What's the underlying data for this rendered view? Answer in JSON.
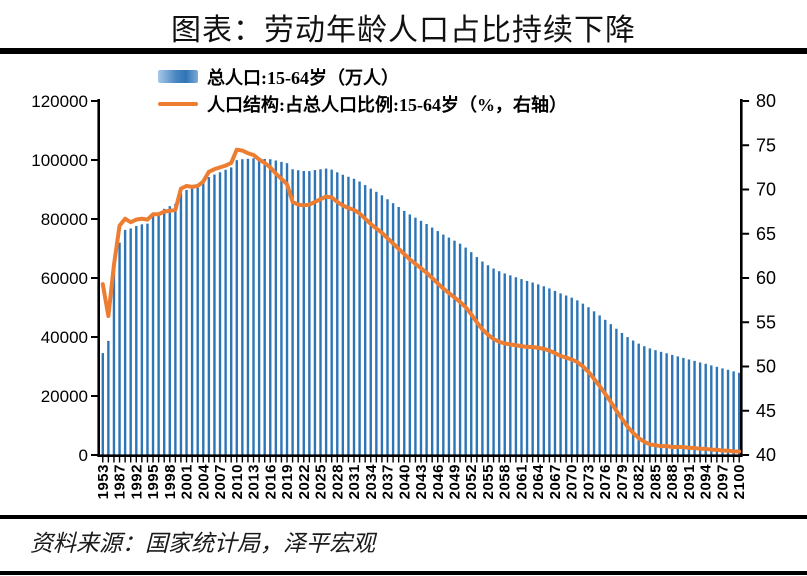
{
  "title": "图表：劳动年龄人口占比持续下降",
  "source": "资料来源：国家统计局，泽平宏观",
  "legend": {
    "bar_label": "总人口:15-64岁（万人）",
    "line_label": "人口结构:占总人口比例:15-64岁（%，右轴）"
  },
  "colors": {
    "bar": "#2e75b6",
    "line": "#ed7d31",
    "axis": "#000000"
  },
  "chart_data": {
    "type": "bar",
    "subtype": "combo-bar-line-dual-axis",
    "title": "劳动年龄人口占比持续下降",
    "xlabel": "",
    "ylabel_left": "总人口:15-64岁（万人）",
    "ylabel_right": "人口结构:占总人口比例:15-64岁（%，右轴）",
    "grid": false,
    "legend_position": "top-left",
    "left_axis": {
      "min": 0,
      "max": 120000,
      "step": 20000,
      "ticks": [
        "0",
        "20000",
        "40000",
        "60000",
        "80000",
        "100000",
        "120000"
      ]
    },
    "right_axis": {
      "min": 40,
      "max": 80,
      "step": 5,
      "ticks": [
        "40",
        "45",
        "50",
        "55",
        "60",
        "65",
        "70",
        "75",
        "80"
      ]
    },
    "x_label_every": 3,
    "x_tick_labels": [
      "1953",
      "1987",
      "1992",
      "1995",
      "1998",
      "2001",
      "2004",
      "2007",
      "2010",
      "2013",
      "2016",
      "2019",
      "2022",
      "2025",
      "2028",
      "2031",
      "2034",
      "2037",
      "2040",
      "2043",
      "2046",
      "2049",
      "2052",
      "2055",
      "2058",
      "2061",
      "2064",
      "2067",
      "2070",
      "2073",
      "2076",
      "2079",
      "2082",
      "2085",
      "2088",
      "2091",
      "2094",
      "2097",
      "2100"
    ],
    "categories": [
      "1953",
      "1964",
      "1982",
      "1987",
      "1990",
      "1991",
      "1992",
      "1993",
      "1994",
      "1995",
      "1996",
      "1997",
      "1998",
      "1999",
      "2000",
      "2001",
      "2002",
      "2003",
      "2004",
      "2005",
      "2006",
      "2007",
      "2008",
      "2009",
      "2010",
      "2011",
      "2012",
      "2013",
      "2014",
      "2015",
      "2016",
      "2017",
      "2018",
      "2019",
      "2020",
      "2021",
      "2022",
      "2023",
      "2024",
      "2025",
      "2026",
      "2027",
      "2028",
      "2029",
      "2030",
      "2031",
      "2032",
      "2033",
      "2034",
      "2035",
      "2036",
      "2037",
      "2038",
      "2039",
      "2040",
      "2041",
      "2042",
      "2043",
      "2044",
      "2045",
      "2046",
      "2047",
      "2048",
      "2049",
      "2050",
      "2051",
      "2052",
      "2053",
      "2054",
      "2055",
      "2056",
      "2057",
      "2058",
      "2059",
      "2060",
      "2061",
      "2062",
      "2063",
      "2064",
      "2065",
      "2066",
      "2067",
      "2068",
      "2069",
      "2070",
      "2071",
      "2072",
      "2073",
      "2074",
      "2075",
      "2076",
      "2077",
      "2078",
      "2079",
      "2080",
      "2081",
      "2082",
      "2083",
      "2084",
      "2085",
      "2086",
      "2087",
      "2088",
      "2089",
      "2090",
      "2091",
      "2092",
      "2093",
      "2094",
      "2095",
      "2096",
      "2097",
      "2098",
      "2099",
      "2100"
    ],
    "series": [
      {
        "name": "总人口:15-64岁（万人）",
        "type": "bar",
        "axis": "left",
        "unit": "万人",
        "values": [
          34550,
          38690,
          62517,
          71985,
          76306,
          76791,
          77614,
          78195,
          78433,
          81393,
          82245,
          83448,
          84338,
          85157,
          88910,
          89849,
          90302,
          90976,
          92184,
          94197,
          95068,
          95833,
          96680,
          97484,
          99938,
          100283,
          100403,
          100582,
          100469,
          100361,
          100260,
          99829,
          99357,
          98914,
          96871,
          96526,
          96289,
          96228,
          96590,
          96870,
          97090,
          96740,
          95830,
          95000,
          94310,
          93640,
          92700,
          91490,
          90280,
          89220,
          88020,
          86690,
          85370,
          84060,
          82760,
          81540,
          80450,
          79370,
          78300,
          77100,
          75910,
          74730,
          73690,
          72650,
          71630,
          70310,
          68760,
          67100,
          65580,
          64320,
          63190,
          62300,
          61540,
          60900,
          60260,
          59620,
          59000,
          58460,
          57830,
          57200,
          56460,
          55620,
          54780,
          54060,
          53340,
          52420,
          51300,
          50090,
          48700,
          47320,
          45820,
          44340,
          42800,
          41370,
          39960,
          38800,
          37750,
          36890,
          36130,
          35550,
          34970,
          34480,
          33910,
          33420,
          32920,
          32380,
          31910,
          31370,
          30910,
          30370,
          29900,
          29350,
          28880,
          28340,
          27880
        ]
      },
      {
        "name": "人口结构:占总人口比例:15-64岁（%，右轴）",
        "type": "line",
        "axis": "right",
        "unit": "%",
        "values": [
          59.3,
          55.7,
          61.5,
          65.9,
          66.7,
          66.3,
          66.6,
          66.7,
          66.6,
          67.2,
          67.2,
          67.5,
          67.6,
          67.7,
          70.1,
          70.4,
          70.3,
          70.4,
          70.9,
          72.0,
          72.3,
          72.5,
          72.7,
          73.0,
          74.5,
          74.4,
          74.1,
          73.9,
          73.4,
          73.0,
          72.5,
          71.8,
          71.2,
          70.6,
          68.6,
          68.3,
          68.2,
          68.3,
          68.6,
          68.9,
          69.2,
          69.1,
          68.6,
          68.2,
          67.9,
          67.7,
          67.3,
          66.7,
          66.1,
          65.6,
          65.1,
          64.5,
          63.9,
          63.3,
          62.7,
          62.1,
          61.6,
          61.1,
          60.6,
          60.0,
          59.4,
          58.8,
          58.3,
          57.8,
          57.3,
          56.7,
          55.9,
          55.0,
          54.2,
          53.6,
          53.1,
          52.8,
          52.6,
          52.5,
          52.4,
          52.3,
          52.2,
          52.2,
          52.1,
          52.0,
          51.8,
          51.5,
          51.2,
          51.0,
          50.8,
          50.5,
          50.0,
          49.4,
          48.6,
          47.8,
          46.9,
          46.0,
          45.0,
          44.1,
          43.2,
          42.5,
          41.9,
          41.5,
          41.2,
          41.1,
          41.0,
          41.0,
          40.9,
          40.9,
          40.9,
          40.8,
          40.8,
          40.7,
          40.7,
          40.6,
          40.6,
          40.5,
          40.5,
          40.4,
          40.4
        ]
      }
    ]
  }
}
